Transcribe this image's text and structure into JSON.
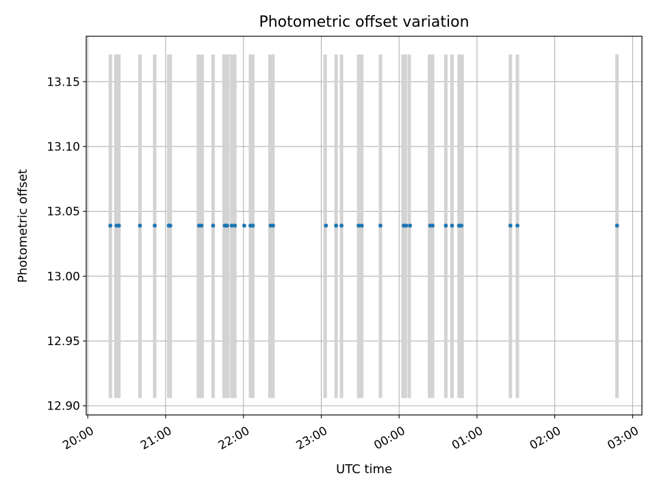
{
  "chart_data": {
    "type": "scatter",
    "title": "Photometric offset variation",
    "xlabel": "UTC time",
    "ylabel": "Photometric offset",
    "x_unit": "hours since 20:00 UTC (date-time axis)",
    "xlim": [
      -0.02,
      7.12
    ],
    "ylim": [
      12.893,
      13.185
    ],
    "x_ticks": [
      {
        "value": 0,
        "label": "20:00"
      },
      {
        "value": 1,
        "label": "21:00"
      },
      {
        "value": 2,
        "label": "22:00"
      },
      {
        "value": 3,
        "label": "23:00"
      },
      {
        "value": 4,
        "label": "00:00"
      },
      {
        "value": 5,
        "label": "01:00"
      },
      {
        "value": 6,
        "label": "02:00"
      },
      {
        "value": 7,
        "label": "03:00"
      }
    ],
    "y_ticks": [
      {
        "value": 12.9,
        "label": "12.90"
      },
      {
        "value": 12.95,
        "label": "12.95"
      },
      {
        "value": 13.0,
        "label": "13.00"
      },
      {
        "value": 13.05,
        "label": "13.05"
      },
      {
        "value": 13.1,
        "label": "13.10"
      },
      {
        "value": 13.15,
        "label": "13.15"
      }
    ],
    "grid": true,
    "legend": "none",
    "point_color": "#1f77b4",
    "band_color": "#d3d3d3",
    "band_range": [
      12.906,
      13.171
    ],
    "value": 13.039,
    "x": [
      0.29,
      0.37,
      0.4,
      0.67,
      0.86,
      1.04,
      1.06,
      1.43,
      1.46,
      1.61,
      1.76,
      1.79,
      1.85,
      1.89,
      2.01,
      2.09,
      2.12,
      2.35,
      2.38,
      3.06,
      3.19,
      3.26,
      3.48,
      3.52,
      3.76,
      4.06,
      4.09,
      4.14,
      4.4,
      4.43,
      4.6,
      4.68,
      4.77,
      4.8,
      5.43,
      5.52,
      6.8
    ],
    "band_x": [
      0.29,
      0.36,
      0.4,
      0.67,
      0.86,
      1.04,
      1.06,
      1.42,
      1.44,
      1.47,
      1.61,
      1.75,
      1.78,
      1.8,
      1.85,
      1.89,
      2.09,
      2.12,
      2.34,
      2.38,
      3.05,
      3.19,
      3.26,
      3.48,
      3.52,
      3.76,
      4.05,
      4.08,
      4.13,
      4.39,
      4.43,
      4.6,
      4.68,
      4.77,
      4.81,
      5.43,
      5.52,
      6.8
    ]
  }
}
